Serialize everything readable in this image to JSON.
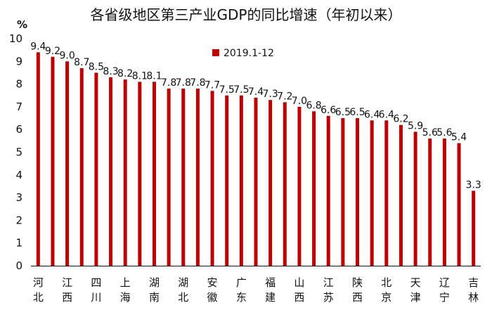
{
  "chart_data": {
    "type": "bar",
    "title": "各省级地区第三产业GDP的同比增速（年初以来）",
    "ylabel": "%",
    "ylim": [
      0,
      10
    ],
    "yticks": [
      0,
      1,
      2,
      3,
      4,
      5,
      6,
      7,
      8,
      9,
      10
    ],
    "legend_position": "top-center",
    "series": [
      {
        "name": "2019.1-12",
        "color": "#c00000",
        "values": [
          9.4,
          9.2,
          9.0,
          8.7,
          8.5,
          8.3,
          8.2,
          8.1,
          8.1,
          7.8,
          7.8,
          7.8,
          7.7,
          7.5,
          7.5,
          7.4,
          7.3,
          7.2,
          7.0,
          6.8,
          6.6,
          6.5,
          6.5,
          6.4,
          6.4,
          6.2,
          5.9,
          5.6,
          5.6,
          5.4,
          3.3
        ]
      }
    ],
    "data_labels": [
      "9.4",
      "9.2",
      "9.0",
      "8.7",
      "8.5",
      "8.3",
      "8.2",
      "8.1",
      "8.1",
      "7.8",
      "7.8",
      "7.8",
      "7.7",
      "7.5",
      "7.5",
      "7.4",
      "7.3",
      "7.2",
      "7.0",
      "6.8",
      "6.6",
      "6.5",
      "6.5",
      "6.4",
      "6.4",
      "6.2",
      "5.9",
      "5.6",
      "5.6",
      "5.4",
      "3.3"
    ],
    "x_tick_labels": [
      {
        "slot": 0,
        "lines": [
          "河",
          "北"
        ]
      },
      {
        "slot": 2,
        "lines": [
          "江",
          "西"
        ]
      },
      {
        "slot": 4,
        "lines": [
          "四",
          "川"
        ]
      },
      {
        "slot": 6,
        "lines": [
          "上",
          "海"
        ]
      },
      {
        "slot": 8,
        "lines": [
          "湖",
          "南"
        ]
      },
      {
        "slot": 10,
        "lines": [
          "湖",
          "北"
        ]
      },
      {
        "slot": 12,
        "lines": [
          "安",
          "徽"
        ]
      },
      {
        "slot": 14,
        "lines": [
          "广",
          "东"
        ]
      },
      {
        "slot": 16,
        "lines": [
          "福",
          "建"
        ]
      },
      {
        "slot": 18,
        "lines": [
          "山",
          "西"
        ]
      },
      {
        "slot": 20,
        "lines": [
          "江",
          "苏"
        ]
      },
      {
        "slot": 22,
        "lines": [
          "陕",
          "西"
        ]
      },
      {
        "slot": 24,
        "lines": [
          "北",
          "京"
        ]
      },
      {
        "slot": 26,
        "lines": [
          "天",
          "津"
        ]
      },
      {
        "slot": 28,
        "lines": [
          "辽",
          "宁"
        ]
      },
      {
        "slot": 30,
        "lines": [
          "吉",
          "林"
        ]
      }
    ]
  }
}
